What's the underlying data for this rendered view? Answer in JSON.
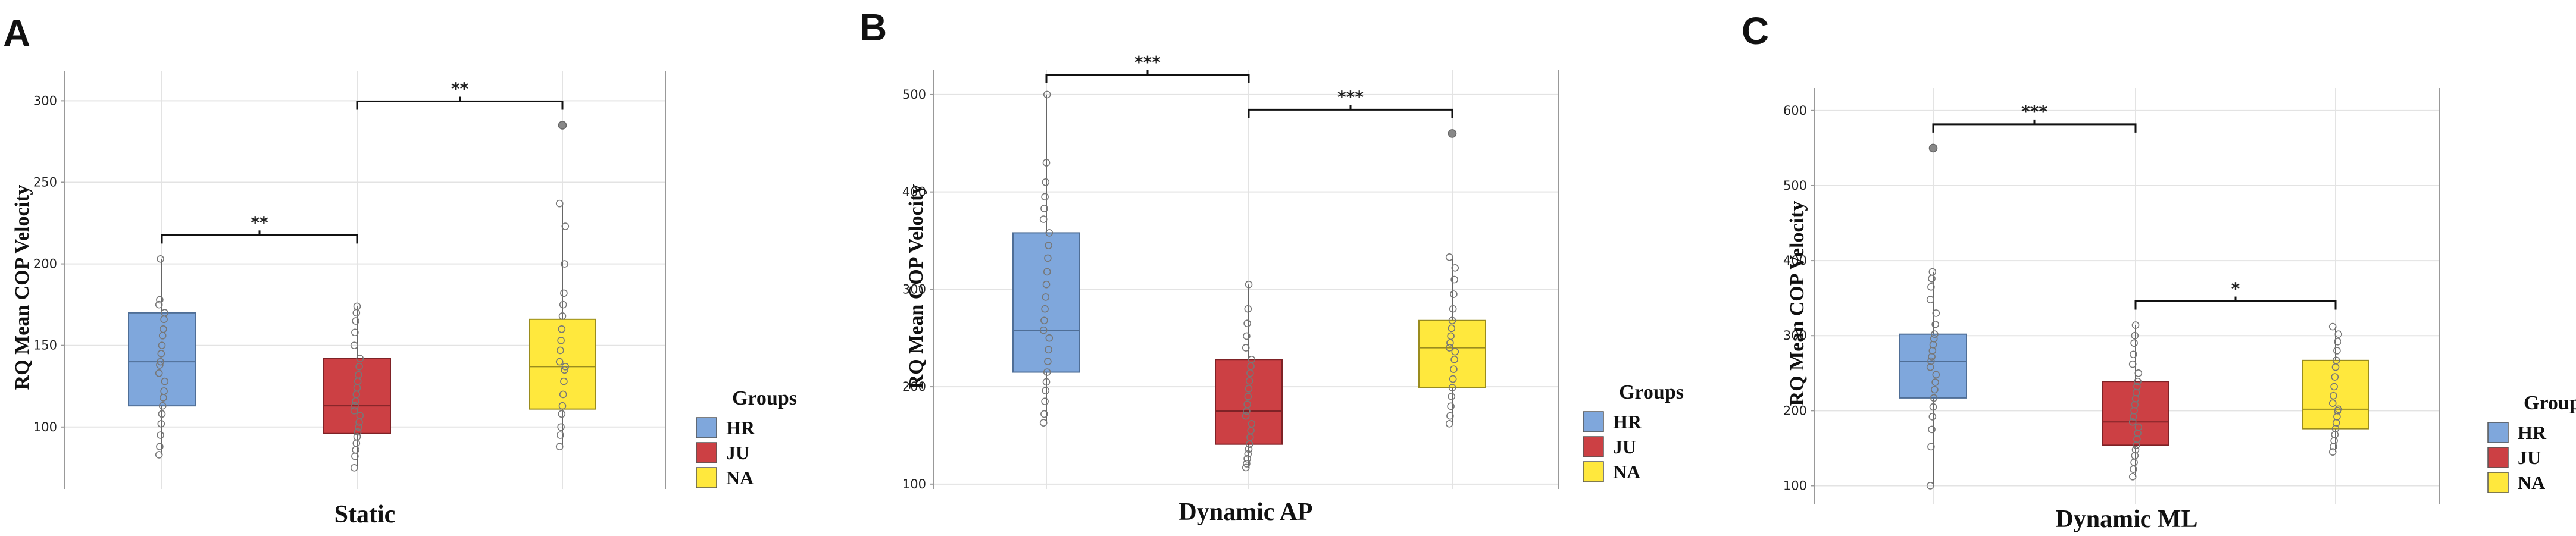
{
  "legend": {
    "title": "Groups",
    "items": [
      {
        "label": "HR",
        "color": "#7FA7DC"
      },
      {
        "label": "JU",
        "color": "#CC4044"
      },
      {
        "label": "NA",
        "color": "#FFE83D"
      }
    ]
  },
  "chart_data": [
    {
      "panel": "A",
      "type": "box",
      "xlabel": "Static",
      "ylabel": "RQ Mean COP Velocity",
      "ylim": [
        62,
        318
      ],
      "yticks": [
        100,
        150,
        200,
        250,
        300
      ],
      "grid": true,
      "boxes": [
        {
          "group": "HR",
          "min": 83,
          "q1": 113,
          "median": 140,
          "q3": 170,
          "max": 203,
          "points": [
            83,
            88,
            95,
            102,
            108,
            113,
            118,
            122,
            128,
            133,
            138,
            140,
            145,
            150,
            156,
            160,
            166,
            170,
            175,
            178,
            203
          ]
        },
        {
          "group": "JU",
          "min": 75,
          "q1": 96,
          "median": 113,
          "q3": 142,
          "max": 174,
          "points": [
            75,
            82,
            86,
            90,
            94,
            97,
            100,
            103,
            107,
            110,
            113,
            116,
            120,
            124,
            128,
            132,
            137,
            142,
            150,
            158,
            165,
            170,
            174
          ]
        },
        {
          "group": "NA",
          "min": 88,
          "q1": 111,
          "median": 137,
          "q3": 166,
          "max": 237,
          "points": [
            88,
            95,
            100,
            108,
            113,
            120,
            128,
            135,
            137,
            140,
            147,
            153,
            160,
            168,
            175,
            182,
            200,
            223,
            237
          ],
          "outliers": [
            285
          ]
        }
      ],
      "significance": [
        {
          "from": "HR",
          "to": "JU",
          "label": "**"
        },
        {
          "from": "JU",
          "to": "NA",
          "label": "**"
        }
      ]
    },
    {
      "panel": "B",
      "type": "box",
      "xlabel": "Dynamic AP",
      "ylabel": "RQ Mean COP Velocity",
      "ylim": [
        95,
        525
      ],
      "yticks": [
        100,
        200,
        300,
        400,
        500
      ],
      "grid": true,
      "boxes": [
        {
          "group": "HR",
          "min": 163,
          "q1": 215,
          "median": 258,
          "q3": 358,
          "max": 500,
          "points": [
            163,
            172,
            185,
            196,
            205,
            215,
            226,
            238,
            250,
            258,
            268,
            280,
            292,
            305,
            318,
            332,
            345,
            358,
            372,
            383,
            395,
            410,
            430,
            500
          ]
        },
        {
          "group": "JU",
          "min": 117,
          "q1": 141,
          "median": 175,
          "q3": 228,
          "max": 305,
          "points": [
            117,
            121,
            126,
            131,
            136,
            141,
            148,
            155,
            162,
            170,
            175,
            182,
            190,
            198,
            206,
            214,
            221,
            228,
            240,
            252,
            265,
            280,
            305
          ]
        },
        {
          "group": "NA",
          "min": 162,
          "q1": 199,
          "median": 240,
          "q3": 268,
          "max": 333,
          "points": [
            162,
            170,
            180,
            190,
            199,
            208,
            218,
            228,
            236,
            240,
            245,
            252,
            260,
            268,
            280,
            295,
            310,
            322,
            333
          ],
          "outliers": [
            460
          ]
        }
      ],
      "significance": [
        {
          "from": "HR",
          "to": "JU",
          "label": "***"
        },
        {
          "from": "JU",
          "to": "NA",
          "label": "***"
        }
      ]
    },
    {
      "panel": "C",
      "type": "box",
      "xlabel": "Dynamic ML",
      "ylabel": "RQ Mean COP Velocity",
      "ylim": [
        75,
        630
      ],
      "yticks": [
        100,
        200,
        300,
        400,
        500,
        600
      ],
      "grid": true,
      "boxes": [
        {
          "group": "HR",
          "min": 100,
          "q1": 217,
          "median": 266,
          "q3": 302,
          "max": 385,
          "points": [
            100,
            152,
            175,
            192,
            205,
            217,
            228,
            238,
            248,
            258,
            266,
            272,
            280,
            288,
            296,
            302,
            315,
            330,
            348,
            365,
            376,
            385
          ],
          "outliers": [
            550
          ]
        },
        {
          "group": "JU",
          "min": 112,
          "q1": 154,
          "median": 185,
          "q3": 239,
          "max": 314,
          "points": [
            112,
            122,
            131,
            140,
            148,
            154,
            162,
            170,
            178,
            185,
            192,
            200,
            208,
            216,
            224,
            232,
            239,
            250,
            262,
            275,
            290,
            300,
            314
          ]
        },
        {
          "group": "NA",
          "min": 145,
          "q1": 176,
          "median": 202,
          "q3": 267,
          "max": 312,
          "points": [
            145,
            152,
            160,
            168,
            176,
            184,
            192,
            200,
            202,
            210,
            220,
            232,
            245,
            258,
            267,
            280,
            292,
            302,
            312
          ]
        }
      ],
      "significance": [
        {
          "from": "HR",
          "to": "JU",
          "label": "***"
        },
        {
          "from": "JU",
          "to": "NA",
          "label": "*"
        }
      ]
    }
  ]
}
